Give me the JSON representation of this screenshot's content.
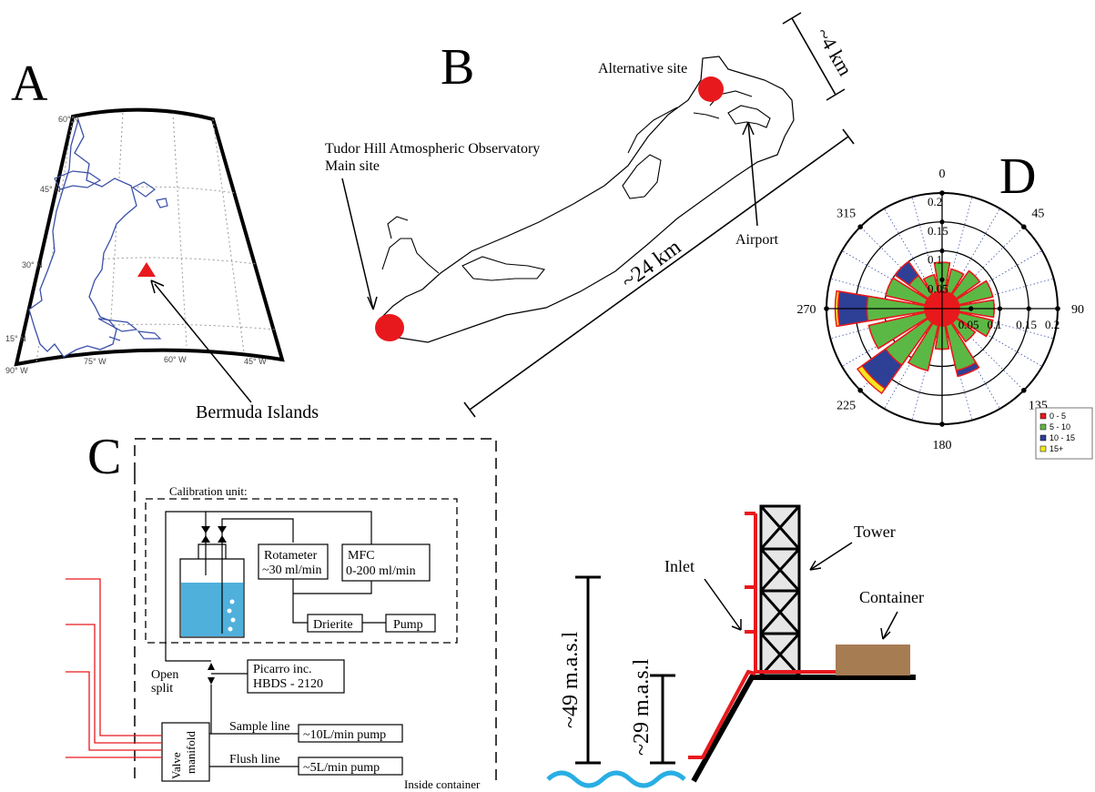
{
  "panels": {
    "a": "A",
    "b": "B",
    "c": "C",
    "d": "D"
  },
  "panel_a": {
    "lat_labels": [
      "60° N",
      "45° N",
      "30° N",
      "15° N"
    ],
    "lon_labels": [
      "90° W",
      "75° W",
      "60° W",
      "45° W"
    ],
    "callout": "Bermuda Islands"
  },
  "panel_b": {
    "main_site_line1": "Tudor Hill Atmospheric Observatory",
    "main_site_line2": "Main site",
    "alt_site": "Alternative site",
    "airport": "Airport",
    "scale_long": "~24 km",
    "scale_short": "~4 km"
  },
  "panel_c": {
    "calibration_unit": "Calibration unit:",
    "rotameter_l1": "Rotameter",
    "rotameter_l2": "~30 ml/min",
    "mfc_l1": "MFC",
    "mfc_l2": "0-200 ml/min",
    "drierite": "Drierite",
    "pump": "Pump",
    "picarro_l1": "Picarro inc.",
    "picarro_l2": "HBDS - 2120",
    "open_split_l1": "Open",
    "open_split_l2": "split",
    "valve_l1": "Valve",
    "valve_l2": "manifold",
    "sample_line": "Sample line",
    "sample_pump": "~10L/min pump",
    "flush_line": "Flush line",
    "flush_pump": "~5L/min pump",
    "inside_container": "Inside container",
    "height_49": "~49 m.a.s.l",
    "height_29": "~29 m.a.s.l",
    "tower": "Tower",
    "inlet": "Inlet",
    "container": "Container"
  },
  "chart_data": {
    "type": "windrose",
    "directions": [
      0,
      22.5,
      45,
      67.5,
      90,
      112.5,
      135,
      157.5,
      180,
      202.5,
      225,
      247.5,
      270,
      292.5,
      315,
      337.5
    ],
    "series": [
      {
        "name": "0 - 5",
        "values": [
          0.03,
          0.03,
          0.03,
          0.03,
          0.03,
          0.03,
          0.03,
          0.03,
          0.03,
          0.03,
          0.03,
          0.03,
          0.03,
          0.03,
          0.03,
          0.03
        ]
      },
      {
        "name": "5 - 10",
        "values": [
          0.08,
          0.07,
          0.08,
          0.09,
          0.09,
          0.09,
          0.07,
          0.11,
          0.07,
          0.11,
          0.12,
          0.13,
          0.13,
          0.1,
          0.07,
          0.06
        ]
      },
      {
        "name": "10 - 15",
        "values": [
          0.08,
          0.07,
          0.08,
          0.09,
          0.09,
          0.09,
          0.07,
          0.12,
          0.07,
          0.11,
          0.17,
          0.13,
          0.18,
          0.1,
          0.1,
          0.06
        ]
      },
      {
        "name": "15+",
        "values": [
          0.08,
          0.07,
          0.08,
          0.09,
          0.09,
          0.09,
          0.07,
          0.12,
          0.07,
          0.11,
          0.18,
          0.13,
          0.185,
          0.1,
          0.1,
          0.06
        ]
      }
    ],
    "series_colors": [
      "#e8191d",
      "#5cb845",
      "#2e3f96",
      "#f5e61e"
    ],
    "angle_labels": [
      "0",
      "45",
      "90",
      "135",
      "180",
      "225",
      "270",
      "315"
    ],
    "radial_labels": [
      "0.05",
      "0.1",
      "0.15",
      "0.2"
    ],
    "rmax": 0.2
  }
}
